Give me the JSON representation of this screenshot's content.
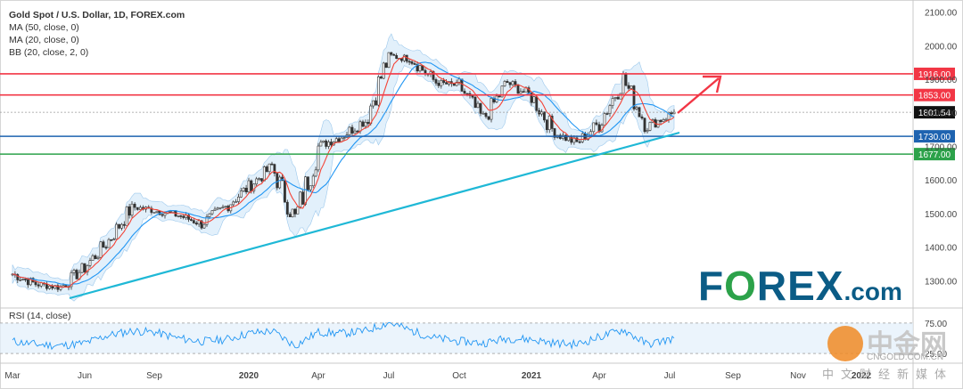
{
  "legend": {
    "title": "Gold Spot / U.S. Dollar, 1D, FOREX.com",
    "ma50": "MA (50, close, 0)",
    "ma20": "MA (20, close, 0)",
    "bb": "BB (20, close, 2, 0)"
  },
  "rsi_label": "RSI (14, close)",
  "brand": {
    "main": "F",
    "o": "O",
    "rest": "REX",
    "ext": ".com"
  },
  "watermark": {
    "cn": "中金网",
    "domain": "CNGOLD.COM.CN",
    "sub": "中文财经新媒体"
  },
  "colors": {
    "up": "#2f2f2f",
    "down": "#2f2f2f",
    "ma20": "#f44336",
    "ma50": "#2196f3",
    "bb_fill": "#cfe6f8",
    "resist": "#f23645",
    "support": "#1e63b0",
    "green": "#2ca24a",
    "trend": "#1fb8d6",
    "rsi": "#2196f3"
  },
  "chart_data": {
    "type": "candlestick",
    "title": "Gold Spot / U.S. Dollar, 1D, FOREX.com",
    "x_tick_labels": [
      "Mar",
      "Jun",
      "Sep",
      "2020",
      "Apr",
      "Jul",
      "Oct",
      "2021",
      "Apr",
      "Jul",
      "Sep",
      "Nov",
      "2022"
    ],
    "y_ticks": [
      1300,
      1400,
      1500,
      1600,
      1700,
      1800,
      1900,
      2000,
      2100
    ],
    "ylim": [
      1240,
      2120
    ],
    "price_series": [
      {
        "date": "Mar 2019",
        "close": 1320
      },
      {
        "date": "Apr 2019",
        "close": 1290
      },
      {
        "date": "May 2019",
        "close": 1280
      },
      {
        "date": "Jun 2019",
        "close": 1340
      },
      {
        "date": "Jul 2019",
        "close": 1420
      },
      {
        "date": "Aug 2019",
        "close": 1520
      },
      {
        "date": "Sep 2019",
        "close": 1510
      },
      {
        "date": "Oct 2019",
        "close": 1495
      },
      {
        "date": "Nov 2019",
        "close": 1470
      },
      {
        "date": "Dec 2019",
        "close": 1520
      },
      {
        "date": "Jan 2020",
        "close": 1580
      },
      {
        "date": "Feb 2020",
        "close": 1640
      },
      {
        "date": "Mar 2020",
        "close": 1480
      },
      {
        "date": "Apr 2020",
        "close": 1700
      },
      {
        "date": "May 2020",
        "close": 1730
      },
      {
        "date": "Jun 2020",
        "close": 1780
      },
      {
        "date": "Jul 2020",
        "close": 1970
      },
      {
        "date": "Aug 2020",
        "close": 1960
      },
      {
        "date": "Sep 2020",
        "close": 1890
      },
      {
        "date": "Oct 2020",
        "close": 1880
      },
      {
        "date": "Nov 2020",
        "close": 1780
      },
      {
        "date": "Dec 2020",
        "close": 1890
      },
      {
        "date": "Jan 2021",
        "close": 1850
      },
      {
        "date": "Feb 2021",
        "close": 1740
      },
      {
        "date": "Mar 2021",
        "close": 1710
      },
      {
        "date": "Apr 2021",
        "close": 1770
      },
      {
        "date": "May 2021",
        "close": 1900
      },
      {
        "date": "Jun 2021",
        "close": 1760
      },
      {
        "date": "Jul 2021",
        "close": 1801.54
      }
    ],
    "horizontal_levels": [
      {
        "label": "1916.00",
        "value": 1916.0,
        "color": "#f23645"
      },
      {
        "label": "1853.00",
        "value": 1853.0,
        "color": "#f23645"
      },
      {
        "label": "1730.00",
        "value": 1730.0,
        "color": "#1e63b0"
      },
      {
        "label": "1677.00",
        "value": 1677.0,
        "color": "#2ca24a"
      }
    ],
    "current_price": {
      "label": "1801.54",
      "value": 1801.54
    },
    "rsi": {
      "name": "RSI (14, close)",
      "ticks": [
        75.0,
        25.0
      ],
      "values": [
        45,
        40,
        38,
        42,
        55,
        62,
        60,
        50,
        45,
        48,
        58,
        62,
        38,
        60,
        58,
        62,
        76,
        62,
        50,
        45,
        42,
        50,
        48,
        42,
        40,
        52,
        64,
        40,
        50
      ]
    }
  }
}
